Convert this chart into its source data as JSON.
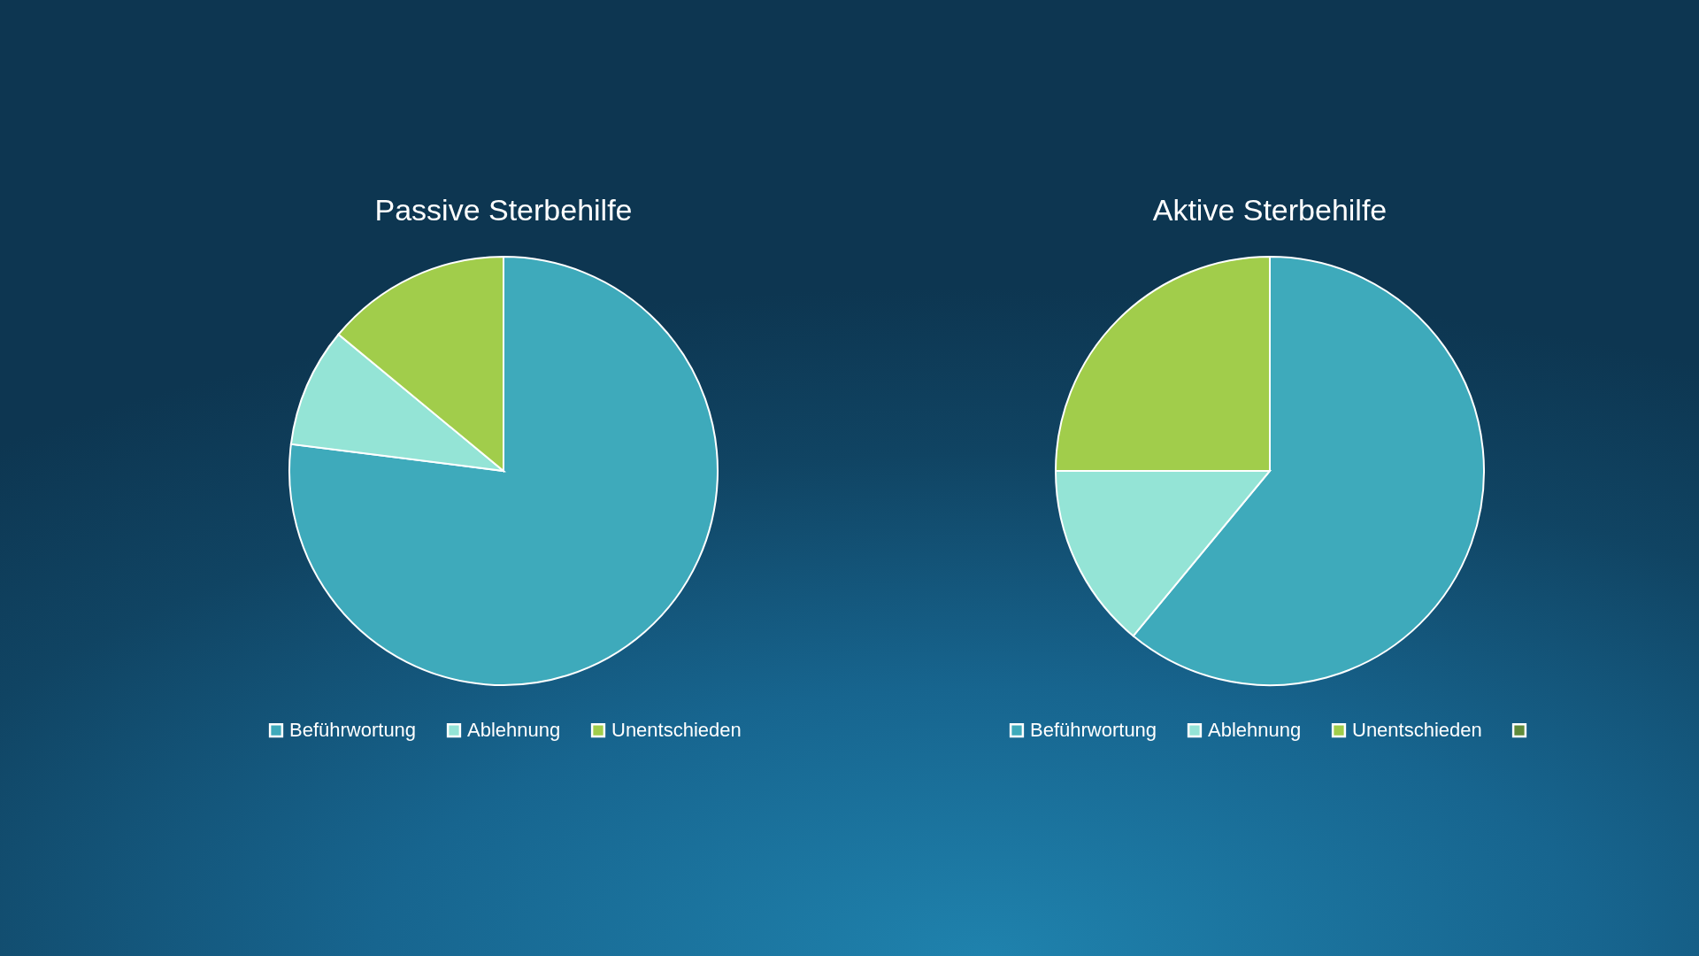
{
  "chart_data": [
    {
      "type": "pie",
      "title": "Passive Sterbehilfe",
      "categories": [
        "Beführwortung",
        "Ablehnung",
        "Unentschieden"
      ],
      "values": [
        77,
        9,
        14
      ],
      "colors": [
        "#3eaabb",
        "#94e4d6",
        "#a1cd4b"
      ],
      "legend": "bottom"
    },
    {
      "type": "pie",
      "title": "Aktive Sterbehilfe",
      "categories": [
        "Beführwortung",
        "Ablehnung",
        "Unentschieden",
        null
      ],
      "values": [
        61,
        14,
        25,
        0
      ],
      "colors": [
        "#3eaabb",
        "#94e4d6",
        "#a1cd4b",
        "#5f8a3b"
      ],
      "legend": "bottom"
    }
  ]
}
